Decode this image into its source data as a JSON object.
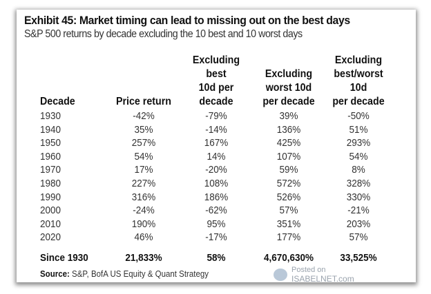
{
  "title": "Exhibit 45: Market timing can lead to missing out on the best days",
  "subtitle": "S&P 500 returns by decade excluding the 10 best and 10 worst days",
  "headers": [
    [
      "Decade"
    ],
    [
      "Price return"
    ],
    [
      "Excluding",
      "best",
      "10d per",
      "decade"
    ],
    [
      "Excluding",
      "worst 10d",
      "per decade"
    ],
    [
      "Excluding",
      "best/worst",
      "10d",
      "per decade"
    ]
  ],
  "rows": [
    [
      "1930",
      "-42%",
      "-79%",
      "39%",
      "-50%"
    ],
    [
      "1940",
      "35%",
      "-14%",
      "136%",
      "51%"
    ],
    [
      "1950",
      "257%",
      "167%",
      "425%",
      "293%"
    ],
    [
      "1960",
      "54%",
      "14%",
      "107%",
      "54%"
    ],
    [
      "1970",
      "17%",
      "-20%",
      "59%",
      "8%"
    ],
    [
      "1980",
      "227%",
      "108%",
      "572%",
      "328%"
    ],
    [
      "1990",
      "316%",
      "186%",
      "526%",
      "330%"
    ],
    [
      "2000",
      "-24%",
      "-62%",
      "57%",
      "-21%"
    ],
    [
      "2010",
      "190%",
      "95%",
      "351%",
      "203%"
    ],
    [
      "2020",
      "46%",
      "-17%",
      "177%",
      "57%"
    ]
  ],
  "total_row": [
    "Since 1930",
    "21,833%",
    "58%",
    "4,670,630%",
    "33,525%"
  ],
  "source": {
    "label": "Source:",
    "text": "S&P, BofA US Equity & Quant Strategy"
  },
  "watermark": {
    "line1": "Posted on",
    "line2": "ISABELNET.com"
  }
}
